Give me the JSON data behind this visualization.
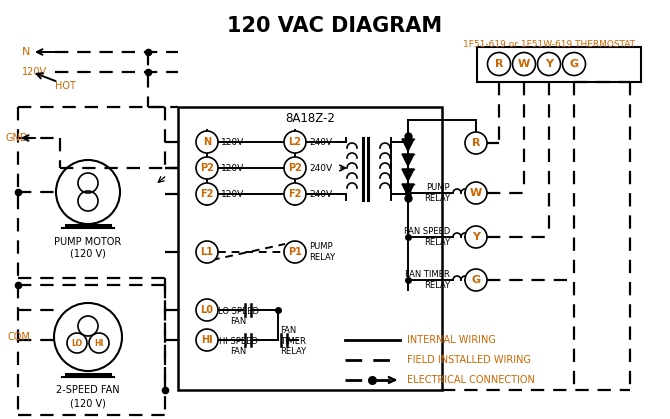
{
  "title": "120 VAC DIAGRAM",
  "bg_color": "#ffffff",
  "black": "#000000",
  "orange": "#cc6600",
  "thermostat_label": "1F51-619 or 1F51W-619 THERMOSTAT",
  "controller_label": "8A18Z-2",
  "legend_items": [
    "INTERNAL WIRING",
    "FIELD INSTALLED WIRING",
    "ELECTRICAL CONNECTION"
  ],
  "left_terms": [
    "N",
    "P2",
    "F2",
    "L1",
    "L0",
    "HI"
  ],
  "left_volts": [
    "120V",
    "120V",
    "120V",
    "",
    "",
    ""
  ],
  "right_terms": [
    "L2",
    "P2",
    "F2"
  ],
  "right_volts": [
    "240V",
    "240V",
    "240V"
  ],
  "relay_terms": [
    "R",
    "W",
    "Y",
    "G"
  ],
  "relay_labels": [
    "",
    "PUMP\nRELAY",
    "FAN SPEED\nRELAY",
    "FAN TIMER\nRELAY"
  ],
  "therm_terms": [
    "R",
    "W",
    "Y",
    "G"
  ]
}
